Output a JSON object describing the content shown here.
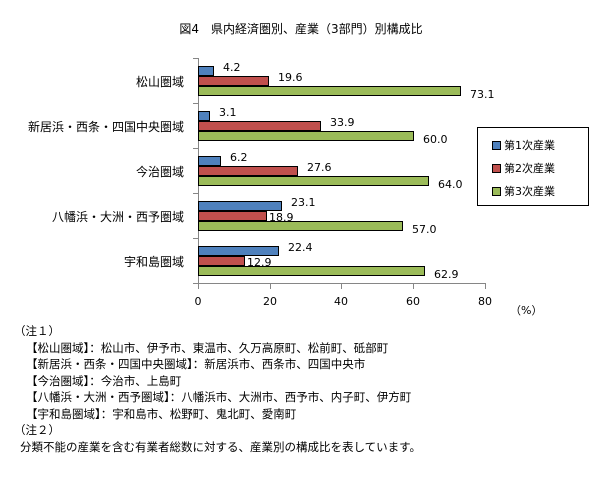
{
  "chart_data": {
    "type": "bar",
    "orientation": "horizontal",
    "title": "図4　県内経済圏別、産業（3部門）別構成比",
    "categories": [
      "松山圏域",
      "新居浜・西条・四国中央圏域",
      "今治圏域",
      "八幡浜・大洲・西予圏域",
      "宇和島圏域"
    ],
    "series": [
      {
        "name": "第1次産業",
        "color": "#4F81BD",
        "values": [
          4.2,
          3.1,
          6.2,
          23.1,
          22.4
        ]
      },
      {
        "name": "第2次産業",
        "color": "#C0504D",
        "values": [
          19.6,
          33.9,
          27.6,
          18.9,
          12.9
        ]
      },
      {
        "name": "第3次産業",
        "color": "#9BBB59",
        "values": [
          73.1,
          60.0,
          64.0,
          57.0,
          62.9
        ]
      }
    ],
    "value_labels": [
      [
        "4.2",
        "19.6",
        "73.1"
      ],
      [
        "3.1",
        "33.9",
        "60.0"
      ],
      [
        "6.2",
        "27.6",
        "64.0"
      ],
      [
        "23.1",
        "18.9",
        "57.0"
      ],
      [
        "22.4",
        "12.9",
        "62.9"
      ]
    ],
    "xlabel": "（%）",
    "ylabel": "",
    "xlim": [
      0,
      80
    ],
    "xticks": [
      "0",
      "20",
      "40",
      "60",
      "80"
    ],
    "grid": false,
    "legend_position": "right"
  },
  "notes": {
    "note1_heading": "（注１）",
    "note1_lines": [
      "【松山圏域】：松山市、伊予市、東温市、久万高原町、松前町、砥部町",
      "【新居浜・西条・四国中央圏域】：新居浜市、西条市、四国中央市",
      "【今治圏域】：今治市、上島町",
      "【八幡浜・大洲・西予圏域】：八幡浜市、大洲市、西予市、内子町、伊方町",
      "【宇和島圏域】：宇和島市、松野町、鬼北町、愛南町"
    ],
    "note2_heading": "（注２）",
    "note2_text": "分類不能の産業を含む有業者総数に対する、産業別の構成比を表しています。"
  }
}
